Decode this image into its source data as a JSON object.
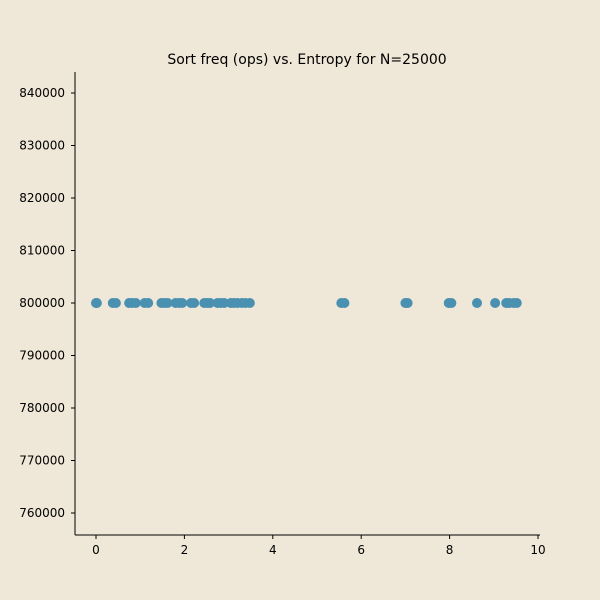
{
  "chart_data": {
    "type": "scatter",
    "title": "Sort freq (ops) vs. Entropy for N=25000",
    "xlabel": "",
    "ylabel": "",
    "xlim": [
      -0.5,
      10
    ],
    "ylim": [
      756000,
      844000
    ],
    "x_ticks": [
      0,
      2,
      4,
      6,
      8,
      10
    ],
    "y_ticks": [
      760000,
      770000,
      780000,
      790000,
      800000,
      810000,
      820000,
      830000,
      840000
    ],
    "grid": false,
    "marker_color": "#4a90b0",
    "series": [
      {
        "points": [
          {
            "x": 0.0,
            "y": 800000
          },
          {
            "x": 0.02,
            "y": 800000
          },
          {
            "x": 0.38,
            "y": 800000
          },
          {
            "x": 0.45,
            "y": 800000
          },
          {
            "x": 0.75,
            "y": 800000
          },
          {
            "x": 0.82,
            "y": 800000
          },
          {
            "x": 0.9,
            "y": 800000
          },
          {
            "x": 1.1,
            "y": 800000
          },
          {
            "x": 1.18,
            "y": 800000
          },
          {
            "x": 1.48,
            "y": 800000
          },
          {
            "x": 1.55,
            "y": 800000
          },
          {
            "x": 1.62,
            "y": 800000
          },
          {
            "x": 1.8,
            "y": 800000
          },
          {
            "x": 1.88,
            "y": 800000
          },
          {
            "x": 1.95,
            "y": 800000
          },
          {
            "x": 2.15,
            "y": 800000
          },
          {
            "x": 2.22,
            "y": 800000
          },
          {
            "x": 2.45,
            "y": 800000
          },
          {
            "x": 2.52,
            "y": 800000
          },
          {
            "x": 2.58,
            "y": 800000
          },
          {
            "x": 2.75,
            "y": 800000
          },
          {
            "x": 2.82,
            "y": 800000
          },
          {
            "x": 2.9,
            "y": 800000
          },
          {
            "x": 3.05,
            "y": 800000
          },
          {
            "x": 3.12,
            "y": 800000
          },
          {
            "x": 3.2,
            "y": 800000
          },
          {
            "x": 3.3,
            "y": 800000
          },
          {
            "x": 3.38,
            "y": 800000
          },
          {
            "x": 3.48,
            "y": 800000
          },
          {
            "x": 5.55,
            "y": 800000
          },
          {
            "x": 5.62,
            "y": 800000
          },
          {
            "x": 7.0,
            "y": 800000
          },
          {
            "x": 7.05,
            "y": 800000
          },
          {
            "x": 7.98,
            "y": 800000
          },
          {
            "x": 8.04,
            "y": 800000
          },
          {
            "x": 8.62,
            "y": 800000
          },
          {
            "x": 9.03,
            "y": 800000
          },
          {
            "x": 9.28,
            "y": 800000
          },
          {
            "x": 9.35,
            "y": 800000
          },
          {
            "x": 9.45,
            "y": 800000
          },
          {
            "x": 9.52,
            "y": 800000
          }
        ]
      }
    ]
  }
}
